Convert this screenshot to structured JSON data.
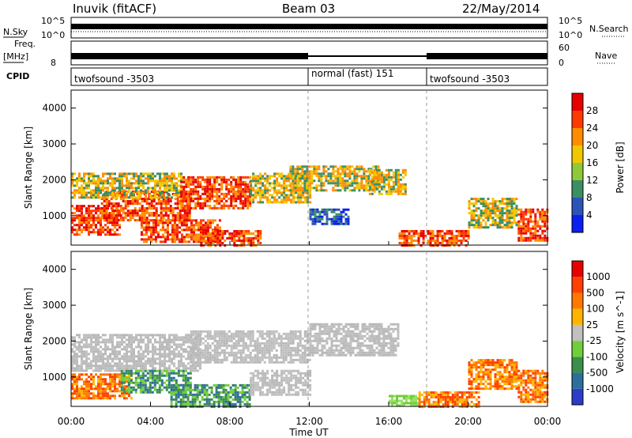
{
  "header": {
    "title": "Inuvik (fitACF)",
    "beam": "Beam 03",
    "date": "22/May/2014"
  },
  "noise_panel": {
    "left_label": "N.Sky",
    "right_label": "N.Search",
    "ticks_left": [
      "10^5",
      "10^0"
    ],
    "ticks_right": [
      "10^5",
      "10^0"
    ]
  },
  "freq_panel": {
    "left_label_1": "Freq.",
    "left_label_2": "[MHz]",
    "right_label": "Nave",
    "ticks_left": [
      "8"
    ],
    "ticks_right": [
      "60",
      "0"
    ]
  },
  "cpid_panel": {
    "label": "CPID",
    "modes": [
      {
        "text": "twofsound -3503",
        "start_hour": 0
      },
      {
        "text": "normal (fast) 151",
        "start_hour": 12
      },
      {
        "text": "twofsound -3503",
        "start_hour": 18
      }
    ]
  },
  "chart_data": [
    {
      "type": "heatmap",
      "quantity": "Power",
      "ylabel": "Slant Range [km]",
      "ylim": [
        180,
        4500
      ],
      "xlim_hours": [
        0,
        24
      ],
      "y_ticks": [
        "1000",
        "2000",
        "3000",
        "4000"
      ],
      "colorbar_label": "Power [dB]",
      "colorbar_ticks": [
        "4",
        "8",
        "12",
        "16",
        "20",
        "24",
        "28"
      ],
      "colorbar_colors": [
        "#0a1ff0",
        "#2b54b8",
        "#3b8f63",
        "#8fc83a",
        "#f0c800",
        "#ff8c00",
        "#ff3a00",
        "#e60000"
      ],
      "echo_regions": [
        {
          "t0": 0.0,
          "t1": 2.5,
          "r0": 500,
          "r1": 1300,
          "level": "strong"
        },
        {
          "t0": 1.5,
          "t1": 6.0,
          "r0": 900,
          "r1": 1700,
          "level": "strong"
        },
        {
          "t0": 0.0,
          "t1": 5.5,
          "r0": 1500,
          "r1": 2200,
          "level": "medium"
        },
        {
          "t0": 3.5,
          "t1": 7.5,
          "r0": 300,
          "r1": 900,
          "level": "strong"
        },
        {
          "t0": 5.5,
          "t1": 9.0,
          "r0": 1200,
          "r1": 2100,
          "level": "strong"
        },
        {
          "t0": 6.5,
          "t1": 9.5,
          "r0": 200,
          "r1": 600,
          "level": "strong"
        },
        {
          "t0": 9.0,
          "t1": 12.0,
          "r0": 1400,
          "r1": 2200,
          "level": "medium"
        },
        {
          "t0": 11.0,
          "t1": 15.5,
          "r0": 1700,
          "r1": 2400,
          "level": "medium"
        },
        {
          "t0": 12.0,
          "t1": 14.0,
          "r0": 800,
          "r1": 1200,
          "level": "weak"
        },
        {
          "t0": 15.0,
          "t1": 16.8,
          "r0": 1600,
          "r1": 2300,
          "level": "medium"
        },
        {
          "t0": 16.5,
          "t1": 20.0,
          "r0": 200,
          "r1": 600,
          "level": "strong"
        },
        {
          "t0": 20.0,
          "t1": 22.5,
          "r0": 700,
          "r1": 1500,
          "level": "medium"
        },
        {
          "t0": 22.5,
          "t1": 24.0,
          "r0": 300,
          "r1": 1200,
          "level": "strong"
        }
      ]
    },
    {
      "type": "heatmap",
      "quantity": "Velocity",
      "ylabel": "Slant Range [km]",
      "ylim": [
        180,
        4500
      ],
      "xlim_hours": [
        0,
        24
      ],
      "y_ticks": [
        "1000",
        "2000",
        "3000",
        "4000"
      ],
      "colorbar_label": "Velocity [m s^-1]",
      "colorbar_ticks": [
        "1000",
        "500",
        "100",
        "25",
        "-25",
        "-100",
        "-500",
        "-1000"
      ],
      "colorbar_colors": [
        "#2c3cc8",
        "#2e6e9a",
        "#3a8f4a",
        "#6fcf3a",
        "#c0c0c0",
        "#ffb400",
        "#ff7800",
        "#ff4000",
        "#e60000"
      ],
      "echo_regions": [
        {
          "t0": 0.0,
          "t1": 3.0,
          "r0": 400,
          "r1": 1100,
          "level": "orange"
        },
        {
          "t0": 0.0,
          "t1": 6.5,
          "r0": 1200,
          "r1": 2200,
          "level": "grey"
        },
        {
          "t0": 2.5,
          "t1": 6.0,
          "r0": 600,
          "r1": 1200,
          "level": "green"
        },
        {
          "t0": 5.0,
          "t1": 9.0,
          "r0": 200,
          "r1": 800,
          "level": "green"
        },
        {
          "t0": 6.0,
          "t1": 12.0,
          "r0": 1400,
          "r1": 2300,
          "level": "grey"
        },
        {
          "t0": 12.0,
          "t1": 16.5,
          "r0": 1600,
          "r1": 2500,
          "level": "grey"
        },
        {
          "t0": 9.0,
          "t1": 12.0,
          "r0": 500,
          "r1": 1200,
          "level": "grey"
        },
        {
          "t0": 16.0,
          "t1": 17.5,
          "r0": 200,
          "r1": 500,
          "level": "lightgreen"
        },
        {
          "t0": 17.5,
          "t1": 20.5,
          "r0": 200,
          "r1": 600,
          "level": "orange"
        },
        {
          "t0": 20.0,
          "t1": 22.5,
          "r0": 700,
          "r1": 1500,
          "level": "orange"
        },
        {
          "t0": 22.5,
          "t1": 24.0,
          "r0": 300,
          "r1": 1200,
          "level": "orange"
        }
      ]
    }
  ],
  "x_axis": {
    "ticks": [
      "00:00",
      "04:00",
      "08:00",
      "12:00",
      "16:00",
      "20:00",
      "00:00"
    ],
    "label": "Time UT"
  }
}
